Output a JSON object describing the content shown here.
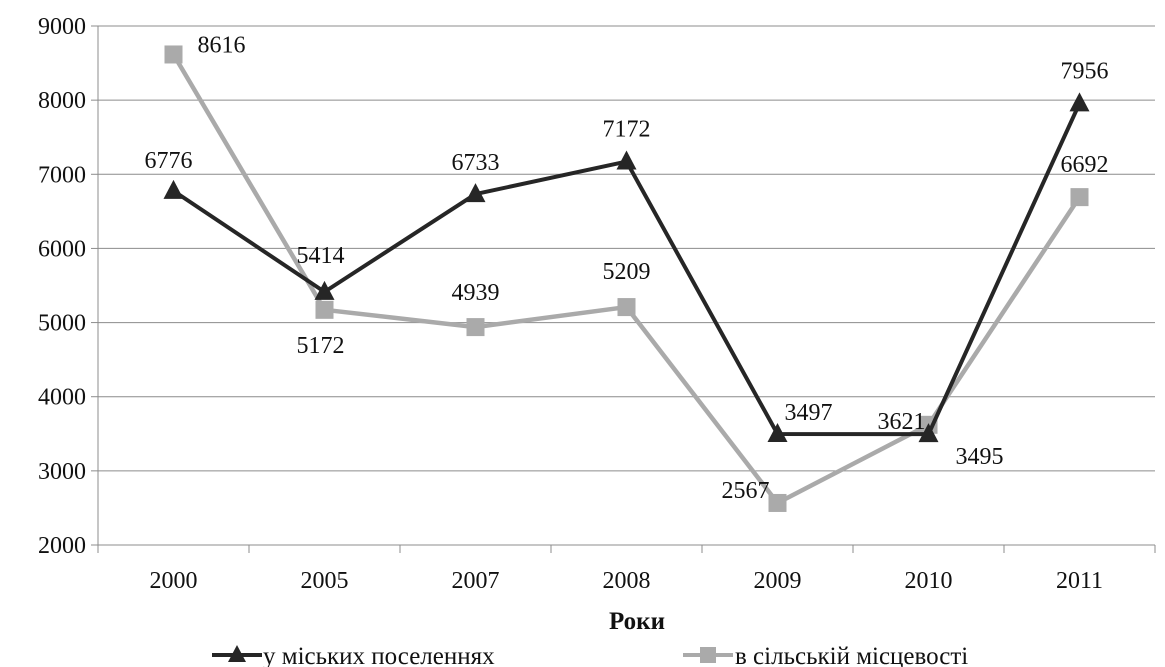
{
  "chart_data": {
    "type": "line",
    "title": "",
    "xlabel": "Роки",
    "ylabel": "",
    "categories": [
      "2000",
      "2005",
      "2007",
      "2008",
      "2009",
      "2010",
      "2011"
    ],
    "ylim": [
      2000,
      9000
    ],
    "yticks": [
      2000,
      3000,
      4000,
      5000,
      6000,
      7000,
      8000,
      9000
    ],
    "grid": "horizontal",
    "legend": "bottom",
    "series": [
      {
        "name": "у міських поселеннях",
        "marker": "triangle",
        "color": "#262626",
        "values": [
          6776,
          5414,
          6733,
          7172,
          3497,
          3495,
          7956
        ],
        "labels": [
          "6776",
          "5414",
          "6733",
          "7172",
          "3497",
          "3495",
          "7956"
        ]
      },
      {
        "name": "в сільській місцевості",
        "marker": "square",
        "color": "#aaaaaa",
        "values": [
          8616,
          5172,
          4939,
          5209,
          2567,
          3621,
          6692
        ],
        "labels": [
          "8616",
          "5172",
          "4939",
          "5209",
          "2567",
          "3621",
          "6692"
        ]
      }
    ]
  }
}
